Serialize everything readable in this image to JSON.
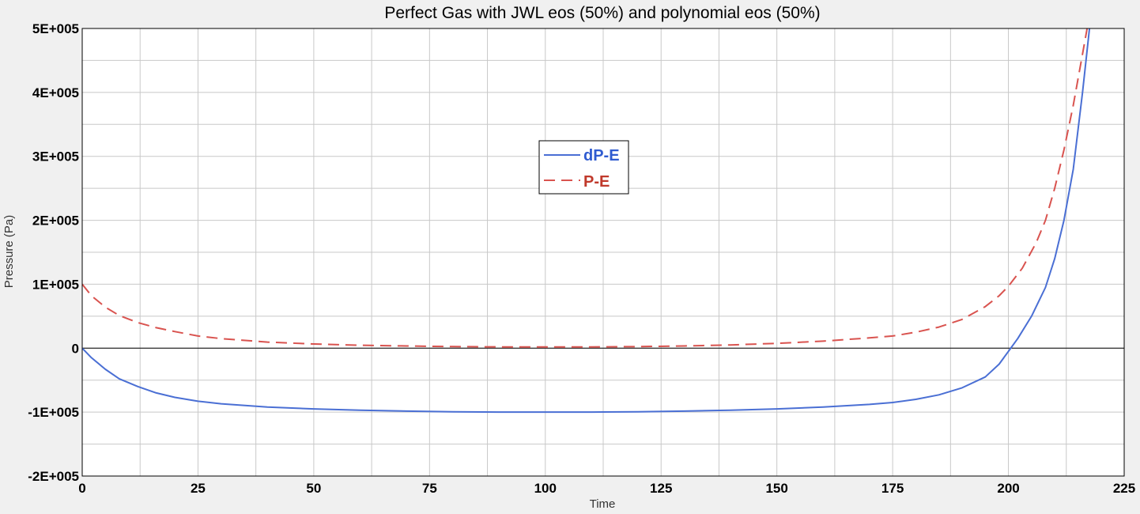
{
  "chart_data": {
    "type": "line",
    "title": "Perfect Gas with JWL eos (50%) and polynomial eos (50%)",
    "xlabel": "Time",
    "ylabel": "Pressure (Pa)",
    "xlim": [
      0,
      225
    ],
    "ylim": [
      -200000,
      500000
    ],
    "x_ticks": [
      0,
      25,
      50,
      75,
      100,
      125,
      150,
      175,
      200,
      225
    ],
    "x_tick_labels": [
      "0",
      "25",
      "50",
      "75",
      "100",
      "125",
      "150",
      "175",
      "200",
      "225"
    ],
    "y_ticks": [
      -200000,
      -100000,
      0,
      100000,
      200000,
      300000,
      400000,
      500000
    ],
    "y_tick_labels": [
      "-2E+005",
      "-1E+005",
      "0",
      "1E+005",
      "2E+005",
      "3E+005",
      "4E+005",
      "5E+005"
    ],
    "grid": true,
    "legend_position": "center-left",
    "series": [
      {
        "name": "dP-E",
        "color": "#4a6fd4",
        "dash": "solid",
        "x": [
          0,
          2,
          5,
          8,
          12,
          16,
          20,
          25,
          30,
          40,
          50,
          60,
          70,
          80,
          90,
          100,
          110,
          120,
          130,
          140,
          150,
          160,
          170,
          175,
          180,
          185,
          190,
          195,
          198,
          200,
          202,
          205,
          208,
          210,
          212,
          214,
          216,
          217.5
        ],
        "y": [
          0,
          -15000,
          -33000,
          -48000,
          -60000,
          -70000,
          -77000,
          -83000,
          -87000,
          -92000,
          -95000,
          -97000,
          -98500,
          -99500,
          -100000,
          -100000,
          -100000,
          -99500,
          -98500,
          -97000,
          -95000,
          -92000,
          -88000,
          -85000,
          -80000,
          -73000,
          -62000,
          -45000,
          -25000,
          -5000,
          15000,
          50000,
          95000,
          140000,
          200000,
          280000,
          400000,
          500000
        ]
      },
      {
        "name": "P-E",
        "color": "#d9534f",
        "dash": "dashed",
        "x": [
          0,
          2,
          5,
          8,
          12,
          16,
          20,
          25,
          30,
          40,
          50,
          60,
          70,
          80,
          90,
          100,
          110,
          120,
          130,
          140,
          150,
          160,
          170,
          175,
          180,
          185,
          190,
          195,
          198,
          200,
          203,
          206,
          208,
          210,
          212,
          214,
          216,
          217
        ],
        "y": [
          100000,
          82000,
          64000,
          51000,
          40000,
          32000,
          26000,
          19000,
          15000,
          9500,
          6500,
          4500,
          3500,
          2500,
          2000,
          2000,
          2000,
          2500,
          3500,
          5000,
          7500,
          11000,
          16000,
          19000,
          25000,
          33000,
          45000,
          65000,
          82000,
          97000,
          125000,
          165000,
          200000,
          250000,
          310000,
          380000,
          460000,
          500000
        ]
      }
    ]
  }
}
